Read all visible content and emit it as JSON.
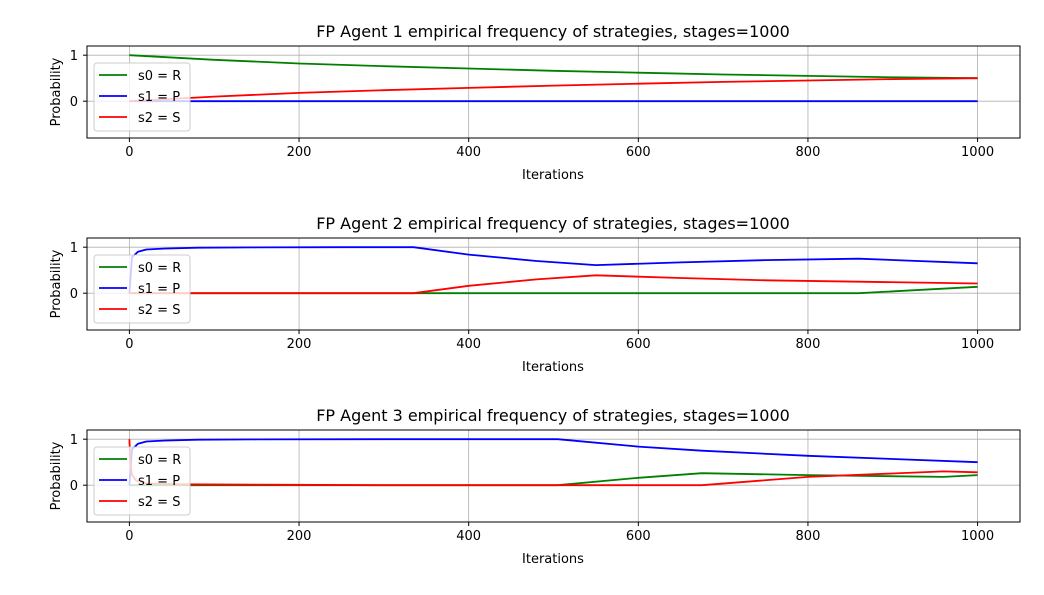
{
  "chart_data": [
    {
      "type": "line",
      "title": "FP Agent 1 empirical frequency of strategies, stages=1000",
      "xlabel": "Iterations",
      "ylabel": "Probability",
      "xlim": [
        -50,
        1050
      ],
      "ylim": [
        -0.8,
        1.2
      ],
      "xticks": [
        0,
        200,
        400,
        600,
        800,
        1000
      ],
      "yticks": [
        0,
        1
      ],
      "grid": true,
      "legend_position": "center-left",
      "series": [
        {
          "name": "s0 = R",
          "color": "#008000",
          "x": [
            0,
            100,
            200,
            300,
            400,
            500,
            600,
            700,
            800,
            900,
            1000
          ],
          "y": [
            1.0,
            0.9,
            0.82,
            0.76,
            0.71,
            0.66,
            0.62,
            0.58,
            0.55,
            0.52,
            0.5
          ]
        },
        {
          "name": "s1 = P",
          "color": "#0000ff",
          "x": [
            0,
            1000
          ],
          "y": [
            0.0,
            0.0
          ]
        },
        {
          "name": "s2 = S",
          "color": "#ff0000",
          "x": [
            0,
            100,
            200,
            300,
            400,
            500,
            600,
            700,
            800,
            900,
            1000
          ],
          "y": [
            0.0,
            0.1,
            0.18,
            0.24,
            0.29,
            0.34,
            0.38,
            0.42,
            0.45,
            0.48,
            0.5
          ]
        }
      ]
    },
    {
      "type": "line",
      "title": "FP Agent 2 empirical frequency of strategies, stages=1000",
      "xlabel": "Iterations",
      "ylabel": "Probability",
      "xlim": [
        -50,
        1050
      ],
      "ylim": [
        -0.8,
        1.2
      ],
      "xticks": [
        0,
        200,
        400,
        600,
        800,
        1000
      ],
      "yticks": [
        0,
        1
      ],
      "grid": true,
      "legend_position": "center-left",
      "series": [
        {
          "name": "s0 = R",
          "color": "#008000",
          "x": [
            0,
            860,
            1000
          ],
          "y": [
            0.0,
            0.0,
            0.14
          ]
        },
        {
          "name": "s1 = P",
          "color": "#0000ff",
          "x": [
            0,
            3,
            10,
            20,
            40,
            80,
            150,
            250,
            335,
            400,
            480,
            550,
            650,
            750,
            860,
            1000
          ],
          "y": [
            0.0,
            0.78,
            0.9,
            0.95,
            0.97,
            0.99,
            0.995,
            1.0,
            1.0,
            0.84,
            0.7,
            0.61,
            0.67,
            0.72,
            0.75,
            0.65
          ]
        },
        {
          "name": "s2 = S",
          "color": "#ff0000",
          "x": [
            0,
            335,
            400,
            480,
            550,
            650,
            750,
            860,
            1000
          ],
          "y": [
            0.0,
            0.0,
            0.16,
            0.3,
            0.39,
            0.33,
            0.28,
            0.25,
            0.21
          ]
        }
      ]
    },
    {
      "type": "line",
      "title": "FP Agent 3 empirical frequency of strategies, stages=1000",
      "xlabel": "Iterations",
      "ylabel": "Probability",
      "xlim": [
        -50,
        1050
      ],
      "ylim": [
        -0.8,
        1.2
      ],
      "xticks": [
        0,
        200,
        400,
        600,
        800,
        1000
      ],
      "yticks": [
        0,
        1
      ],
      "grid": true,
      "legend_position": "center-left",
      "series": [
        {
          "name": "s0 = R",
          "color": "#008000",
          "x": [
            0,
            505,
            600,
            675,
            800,
            960,
            1000
          ],
          "y": [
            0.0,
            0.0,
            0.16,
            0.26,
            0.22,
            0.18,
            0.22
          ]
        },
        {
          "name": "s1 = P",
          "color": "#0000ff",
          "x": [
            0,
            3,
            10,
            20,
            40,
            80,
            150,
            300,
            505,
            600,
            675,
            800,
            900,
            1000
          ],
          "y": [
            0.0,
            0.78,
            0.9,
            0.95,
            0.97,
            0.99,
            0.995,
            1.0,
            1.0,
            0.84,
            0.75,
            0.64,
            0.57,
            0.5
          ]
        },
        {
          "name": "s2 = S",
          "color": "#ff0000",
          "x": [
            0,
            1,
            3,
            8,
            20,
            60,
            150,
            300,
            505,
            675,
            800,
            960,
            1000
          ],
          "y": [
            1.0,
            0.5,
            0.22,
            0.1,
            0.04,
            0.02,
            0.01,
            0.0,
            0.0,
            0.0,
            0.18,
            0.3,
            0.28
          ]
        }
      ]
    }
  ]
}
